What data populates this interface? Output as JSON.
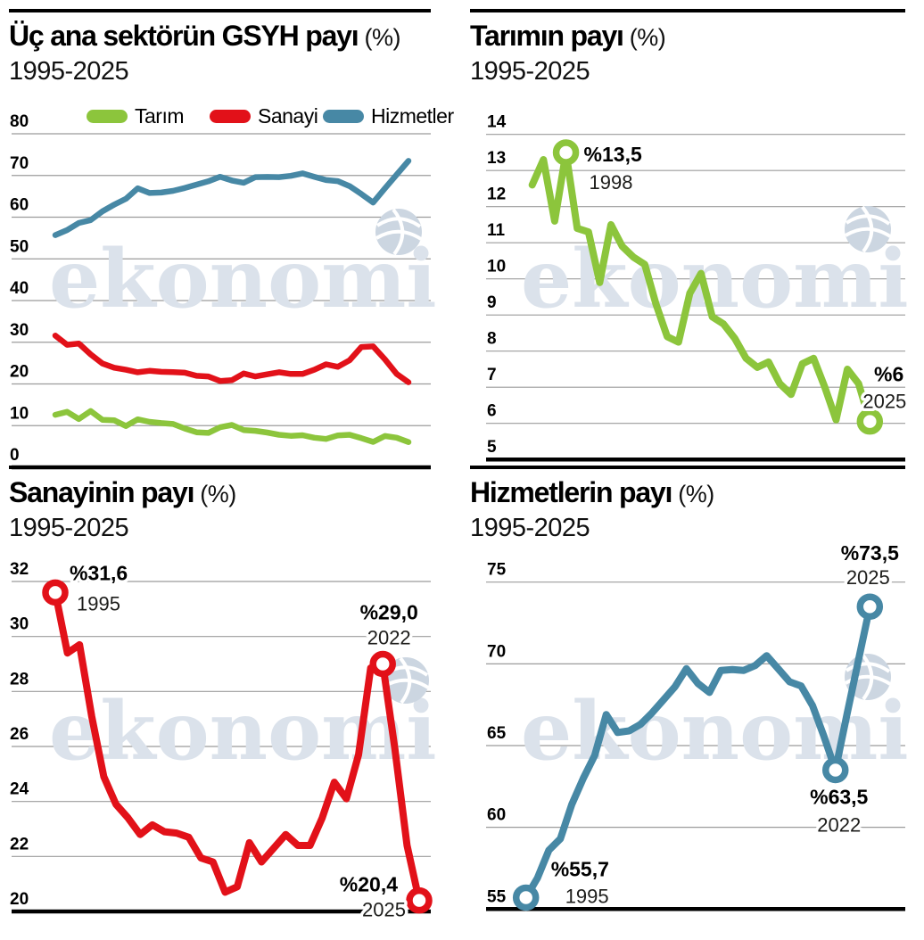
{
  "watermark": {
    "text": "ekonomi"
  },
  "colors": {
    "tarim": "#8cc53c",
    "sanayi": "#e21119",
    "hizmetler": "#4788a5",
    "grid": "#9b9b9b",
    "axis": "#000000",
    "watermark_text": "#dbe2eb",
    "watermark_globe": "#ccd6e1",
    "annotation_value": "#000000",
    "annotation_year": "#1d1d1b"
  },
  "years": {
    "start": 1995,
    "end": 2025,
    "points": 31
  },
  "chart_data": [
    {
      "type": "line",
      "title": "Üç ana sektörün GSYH payı",
      "suffix": "(%)",
      "subtitle": "1995-2025",
      "xlabel": "",
      "ylabel": "",
      "ylim": [
        0,
        80
      ],
      "y_ticks": [
        80,
        70,
        60,
        50,
        40,
        30,
        20,
        10,
        0
      ],
      "grid": true,
      "legend_position": "top",
      "legend": [
        {
          "label": "Tarım",
          "color_key": "tarim"
        },
        {
          "label": "Sanayi",
          "color_key": "sanayi"
        },
        {
          "label": "Hizmetler",
          "color_key": "hizmetler"
        }
      ],
      "x": {
        "start": 1995,
        "end": 2025
      },
      "series": [
        {
          "name": "Tarım",
          "color_key": "tarim",
          "values": [
            12.6,
            13.3,
            11.6,
            13.5,
            11.4,
            11.3,
            9.9,
            11.5,
            10.9,
            10.6,
            10.4,
            9.3,
            8.4,
            8.25,
            9.6,
            10.15,
            8.95,
            8.75,
            8.35,
            7.8,
            7.55,
            7.7,
            7.1,
            6.8,
            7.65,
            7.8,
            7.0,
            6.1,
            7.5,
            7.1,
            6.05
          ]
        },
        {
          "name": "Sanayi",
          "color_key": "sanayi",
          "values": [
            31.6,
            29.4,
            29.7,
            27.1,
            24.9,
            23.9,
            23.4,
            22.8,
            23.15,
            22.9,
            22.85,
            22.7,
            21.95,
            21.8,
            20.7,
            20.9,
            22.5,
            21.8,
            22.3,
            22.8,
            22.4,
            22.4,
            23.4,
            24.7,
            24.1,
            25.7,
            28.85,
            29.0,
            25.9,
            22.4,
            20.4
          ]
        },
        {
          "name": "Hizmetler",
          "color_key": "hizmetler",
          "values": [
            55.7,
            56.9,
            58.6,
            59.3,
            61.4,
            63.0,
            64.4,
            66.9,
            65.8,
            65.9,
            66.3,
            67.0,
            67.8,
            68.6,
            69.7,
            68.8,
            68.25,
            69.6,
            69.65,
            69.6,
            69.9,
            70.5,
            69.7,
            68.9,
            68.65,
            67.45,
            65.55,
            63.5,
            66.9,
            70.2,
            73.5
          ]
        }
      ],
      "annotations": []
    },
    {
      "type": "line",
      "title": "Tarımın payı",
      "suffix": "(%)",
      "subtitle": "1995-2025",
      "ylim": [
        5,
        14
      ],
      "y_ticks": [
        14,
        13,
        12,
        11,
        10,
        9,
        8,
        7,
        6,
        5
      ],
      "grid": true,
      "x": {
        "start": 1995,
        "end": 2025
      },
      "series": [
        {
          "name": "Tarım",
          "color_key": "tarim",
          "values": [
            12.6,
            13.3,
            11.6,
            13.5,
            11.4,
            11.3,
            9.9,
            11.5,
            10.9,
            10.6,
            10.4,
            9.3,
            8.4,
            8.25,
            9.6,
            10.15,
            8.95,
            8.75,
            8.35,
            7.8,
            7.55,
            7.7,
            7.1,
            6.8,
            7.65,
            7.8,
            7.0,
            6.1,
            7.5,
            7.1,
            6.05
          ]
        }
      ],
      "annotations": [
        {
          "year": 1998,
          "value_label": "%13,5",
          "year_label": "1998"
        },
        {
          "year": 2025,
          "value_label": "%6",
          "year_label": "2025"
        }
      ]
    },
    {
      "type": "line",
      "title": "Sanayinin payı",
      "suffix": "(%)",
      "subtitle": "1995-2025",
      "ylim": [
        20,
        32
      ],
      "y_ticks": [
        32,
        30,
        28,
        26,
        24,
        22,
        20
      ],
      "grid": true,
      "x": {
        "start": 1995,
        "end": 2025
      },
      "series": [
        {
          "name": "Sanayi",
          "color_key": "sanayi",
          "values": [
            31.6,
            29.4,
            29.7,
            27.1,
            24.9,
            23.9,
            23.4,
            22.8,
            23.15,
            22.9,
            22.85,
            22.7,
            21.95,
            21.8,
            20.7,
            20.9,
            22.5,
            21.8,
            22.3,
            22.8,
            22.4,
            22.4,
            23.4,
            24.7,
            24.1,
            25.7,
            28.85,
            29.0,
            25.9,
            22.4,
            20.4
          ]
        }
      ],
      "annotations": [
        {
          "year": 1995,
          "value_label": "%31,6",
          "year_label": "1995"
        },
        {
          "year": 2022,
          "value_label": "%29,0",
          "year_label": "2022"
        },
        {
          "year": 2025,
          "value_label": "%20,4",
          "year_label": "2025"
        }
      ]
    },
    {
      "type": "line",
      "title": "Hizmetlerin payı",
      "suffix": "(%)",
      "subtitle": "1995-2025",
      "ylim": [
        55,
        75
      ],
      "y_ticks": [
        75,
        70,
        65,
        60,
        55
      ],
      "grid": true,
      "x": {
        "start": 1995,
        "end": 2025
      },
      "series": [
        {
          "name": "Hizmetler",
          "color_key": "hizmetler",
          "values": [
            55.7,
            56.9,
            58.6,
            59.3,
            61.4,
            63.0,
            64.4,
            66.9,
            65.8,
            65.9,
            66.3,
            67.0,
            67.8,
            68.6,
            69.7,
            68.8,
            68.25,
            69.6,
            69.65,
            69.6,
            69.9,
            70.5,
            69.7,
            68.9,
            68.65,
            67.45,
            65.55,
            63.5,
            66.9,
            70.2,
            73.5
          ]
        }
      ],
      "annotations": [
        {
          "year": 1995,
          "value_label": "%55,7",
          "year_label": "1995"
        },
        {
          "year": 2022,
          "value_label": "%63,5",
          "year_label": "2022"
        },
        {
          "year": 2025,
          "value_label": "%73,5",
          "year_label": "2025"
        }
      ]
    }
  ]
}
